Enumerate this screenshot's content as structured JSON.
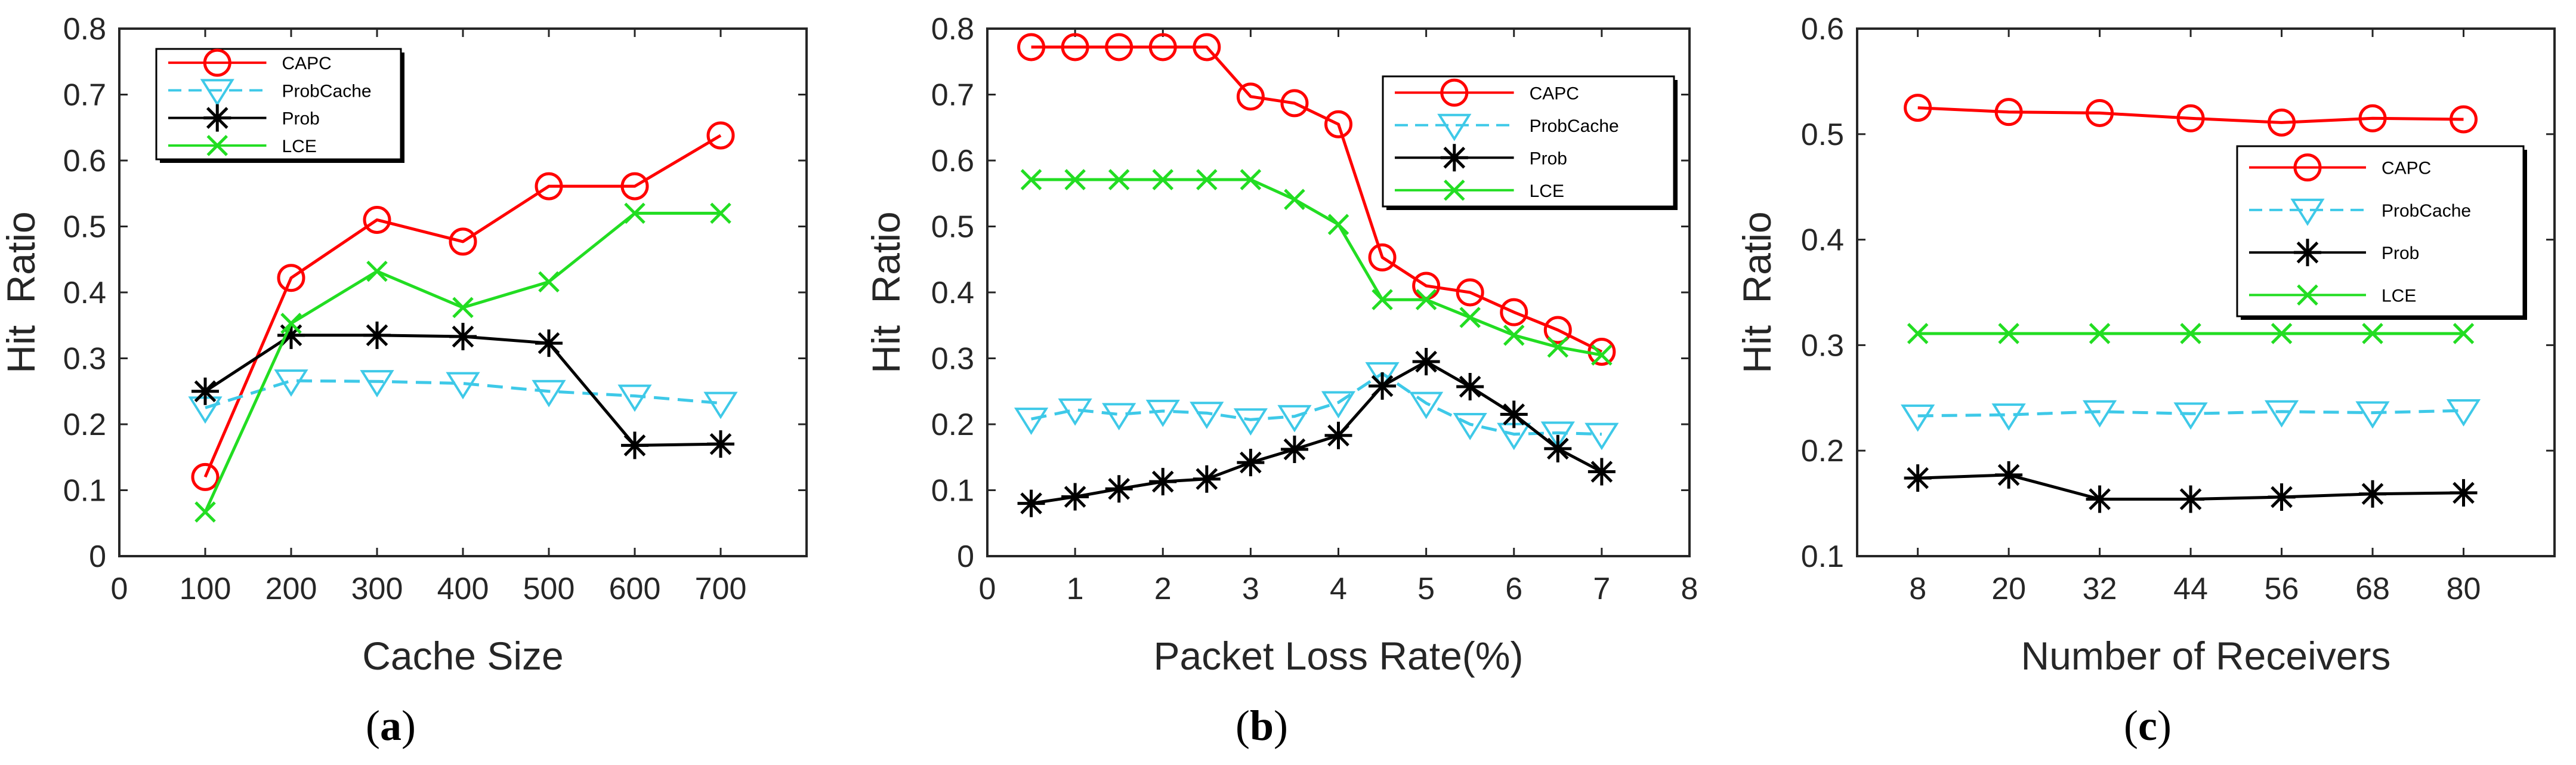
{
  "figure": {
    "panels": [
      {
        "id": "a",
        "caption_open": "(",
        "caption_letter": "a",
        "caption_close": ")"
      },
      {
        "id": "b",
        "caption_open": "(",
        "caption_letter": "b",
        "caption_close": ")"
      },
      {
        "id": "c",
        "caption_open": "(",
        "caption_letter": "c",
        "caption_close": ")"
      }
    ]
  },
  "chart_data": [
    {
      "type": "line",
      "xlabel": "Cache Size",
      "ylabel": "Hit  Ratio",
      "xlim": [
        0,
        800
      ],
      "ylim": [
        0,
        0.8
      ],
      "xticks": [
        0,
        100,
        200,
        300,
        400,
        500,
        600,
        700
      ],
      "xtick_labels": [
        "0",
        "100",
        "200",
        "300",
        "400",
        "500",
        "600",
        "700"
      ],
      "yticks": [
        0,
        0.1,
        0.2,
        0.3,
        0.4,
        0.5,
        0.6,
        0.7,
        0.8
      ],
      "ytick_labels": [
        "0",
        "0.1",
        "0.2",
        "0.3",
        "0.4",
        "0.5",
        "0.6",
        "0.7",
        "0.8"
      ],
      "legend_position": "top-left",
      "x": [
        100,
        200,
        300,
        400,
        500,
        600,
        700
      ],
      "series": [
        {
          "name": "CAPC",
          "color": "#ff0000",
          "marker": "circle",
          "dash": "solid",
          "values": [
            0.12,
            0.422,
            0.51,
            0.477,
            0.561,
            0.561,
            0.638
          ]
        },
        {
          "name": "ProbCache",
          "color": "#3ec9e8",
          "marker": "triangle-down",
          "dash": "dashed",
          "values": [
            0.225,
            0.266,
            0.265,
            0.262,
            0.25,
            0.243,
            0.232
          ]
        },
        {
          "name": "Prob",
          "color": "#000000",
          "marker": "asterisk",
          "dash": "solid",
          "values": [
            0.25,
            0.335,
            0.335,
            0.333,
            0.323,
            0.168,
            0.17
          ]
        },
        {
          "name": "LCE",
          "color": "#22dd22",
          "marker": "x",
          "dash": "solid",
          "values": [
            0.067,
            0.353,
            0.432,
            0.377,
            0.416,
            0.52,
            0.52
          ]
        }
      ]
    },
    {
      "type": "line",
      "xlabel": "Packet Loss Rate(%)",
      "ylabel": "Hit  Ratio",
      "xlim": [
        0,
        8
      ],
      "ylim": [
        0,
        0.8
      ],
      "xticks": [
        0,
        1,
        2,
        3,
        4,
        5,
        6,
        7,
        8
      ],
      "xtick_labels": [
        "0",
        "1",
        "2",
        "3",
        "4",
        "5",
        "6",
        "7",
        "8"
      ],
      "yticks": [
        0,
        0.1,
        0.2,
        0.3,
        0.4,
        0.5,
        0.6,
        0.7,
        0.8
      ],
      "ytick_labels": [
        "0",
        "0.1",
        "0.2",
        "0.3",
        "0.4",
        "0.5",
        "0.6",
        "0.7",
        "0.8"
      ],
      "legend_position": "top-right",
      "x": [
        0.5,
        1,
        1.5,
        2,
        2.5,
        3,
        3.5,
        4,
        4.5,
        5,
        5.5,
        6,
        6.5,
        7
      ],
      "series": [
        {
          "name": "CAPC",
          "color": "#ff0000",
          "marker": "circle",
          "dash": "solid",
          "values": [
            0.772,
            0.772,
            0.772,
            0.772,
            0.772,
            0.697,
            0.687,
            0.655,
            0.453,
            0.41,
            0.4,
            0.37,
            0.343,
            0.31
          ]
        },
        {
          "name": "ProbCache",
          "color": "#3ec9e8",
          "marker": "triangle-down",
          "dash": "dashed",
          "values": [
            0.208,
            0.222,
            0.215,
            0.22,
            0.217,
            0.207,
            0.212,
            0.233,
            0.277,
            0.232,
            0.2,
            0.185,
            0.187,
            0.185
          ]
        },
        {
          "name": "Prob",
          "color": "#000000",
          "marker": "asterisk",
          "dash": "solid",
          "values": [
            0.08,
            0.09,
            0.102,
            0.113,
            0.117,
            0.142,
            0.162,
            0.183,
            0.258,
            0.295,
            0.257,
            0.215,
            0.163,
            0.128
          ]
        },
        {
          "name": "LCE",
          "color": "#22dd22",
          "marker": "x",
          "dash": "solid",
          "values": [
            0.571,
            0.571,
            0.571,
            0.571,
            0.571,
            0.571,
            0.541,
            0.503,
            0.389,
            0.389,
            0.362,
            0.335,
            0.317,
            0.305
          ]
        }
      ]
    },
    {
      "type": "line",
      "xlabel": "Number of Receivers",
      "ylabel": "Hit  Ratio",
      "xlim": [
        0,
        92
      ],
      "ylim": [
        0.1,
        0.6
      ],
      "xticks": [
        8,
        20,
        32,
        44,
        56,
        68,
        80
      ],
      "xtick_labels": [
        "8",
        "20",
        "32",
        "44",
        "56",
        "68",
        "80"
      ],
      "yticks": [
        0.1,
        0.2,
        0.3,
        0.4,
        0.5,
        0.6
      ],
      "ytick_labels": [
        "0.1",
        "0.2",
        "0.3",
        "0.4",
        "0.5",
        "0.6"
      ],
      "legend_position": "center-right",
      "x": [
        8,
        20,
        32,
        44,
        56,
        68,
        80
      ],
      "series": [
        {
          "name": "CAPC",
          "color": "#ff0000",
          "marker": "circle",
          "dash": "solid",
          "values": [
            0.525,
            0.521,
            0.52,
            0.515,
            0.511,
            0.515,
            0.514
          ]
        },
        {
          "name": "ProbCache",
          "color": "#3ec9e8",
          "marker": "triangle-down",
          "dash": "dashed",
          "values": [
            0.233,
            0.234,
            0.237,
            0.235,
            0.237,
            0.236,
            0.238
          ]
        },
        {
          "name": "Prob",
          "color": "#000000",
          "marker": "asterisk",
          "dash": "solid",
          "values": [
            0.174,
            0.177,
            0.154,
            0.154,
            0.156,
            0.159,
            0.16
          ]
        },
        {
          "name": "LCE",
          "color": "#22dd22",
          "marker": "x",
          "dash": "solid",
          "values": [
            0.311,
            0.311,
            0.311,
            0.311,
            0.311,
            0.311,
            0.311
          ]
        }
      ]
    }
  ]
}
